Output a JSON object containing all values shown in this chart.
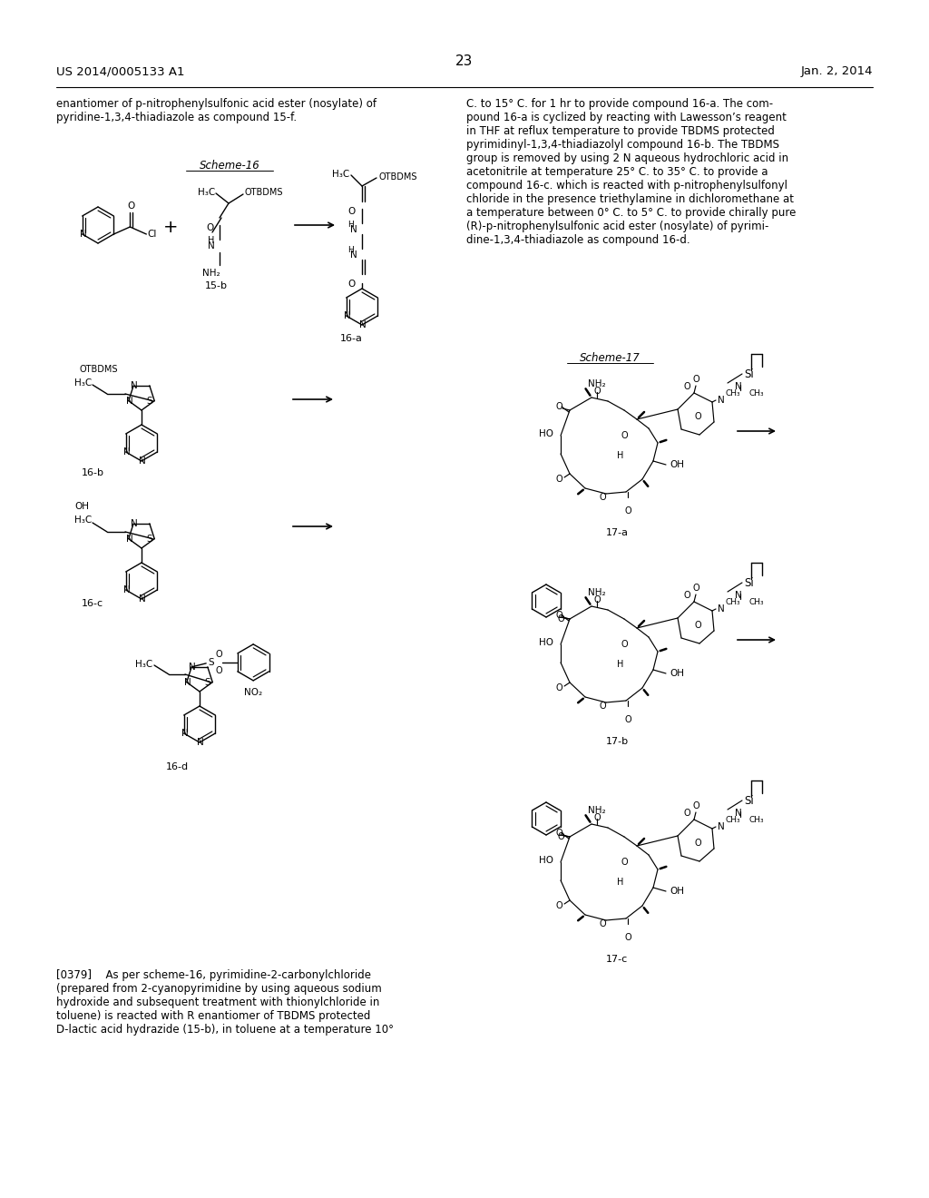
{
  "background_color": "#ffffff",
  "page_number": "23",
  "patent_number": "US 2014/0005133 A1",
  "patent_date": "Jan. 2, 2014",
  "top_left_text": "enantiomer of p-nitrophenylsulfonic acid ester (nosylate) of\npyridine-1,3,4-thiadiazole as compound 15-f.",
  "right_col_text": "C. to 15° C. for 1 hr to provide compound 16-a. The com-\npound 16-a is cyclized by reacting with Lawesson’s reagent\nin THF at reflux temperature to provide TBDMS protected\npyrimidinyl-1,3,4-thiadiazolyl compound 16-b. The TBDMS\ngroup is removed by using 2 N aqueous hydrochloric acid in\nacetonitrile at temperature 25° C. to 35° C. to provide a\ncompound 16-c. which is reacted with p-nitrophenylsulfonyl\nchloride in the presence triethylamine in dichloromethane at\na temperature between 0° C. to 5° C. to provide chirally pure\n(R)-p-nitrophenylsulfonic acid ester (nosylate) of pyrimi-\ndine-1,3,4-thiadiazole as compound 16-d.",
  "bottom_left_text": "[0379]  As per scheme-16, pyrimidine-2-carbonylchloride\n(prepared from 2-cyanopyrimidine by using aqueous sodium\nhydroxide and subsequent treatment with thionylchloride in\ntoluene) is reacted with R enantiomer of TBDMS protected\nD-lactic acid hydrazide (15-b), in toluene at a temperature 10°",
  "scheme16_label": "Scheme-16",
  "scheme17_label": "Scheme-17"
}
